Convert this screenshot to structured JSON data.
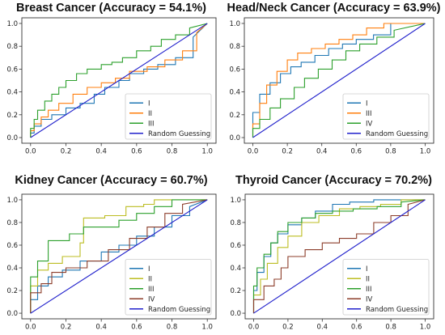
{
  "chart_data": [
    {
      "type": "line",
      "title": "Breast Cancer (Accuracy = 54.1%)",
      "xlim": [
        0,
        1
      ],
      "ylim": [
        0,
        1
      ],
      "xticks": [
        "0.0",
        "0.2",
        "0.4",
        "0.6",
        "0.8",
        "1.0"
      ],
      "yticks": [
        "0.0",
        "0.2",
        "0.4",
        "0.6",
        "0.8",
        "1.0"
      ],
      "grid": false,
      "legend_placement": "lower-right",
      "series": [
        {
          "name": "I",
          "color": "#1f77b4",
          "x": [
            0,
            0,
            0.02,
            0.02,
            0.06,
            0.06,
            0.12,
            0.12,
            0.2,
            0.2,
            0.28,
            0.28,
            0.36,
            0.36,
            0.42,
            0.42,
            0.5,
            0.5,
            0.56,
            0.56,
            0.64,
            0.64,
            0.72,
            0.72,
            0.82,
            0.82,
            0.92,
            0.92,
            1.0
          ],
          "y": [
            0,
            0.04,
            0.04,
            0.1,
            0.1,
            0.16,
            0.16,
            0.2,
            0.2,
            0.26,
            0.26,
            0.3,
            0.3,
            0.38,
            0.38,
            0.44,
            0.44,
            0.5,
            0.5,
            0.56,
            0.56,
            0.6,
            0.6,
            0.64,
            0.64,
            0.7,
            0.7,
            0.88,
            1.0
          ]
        },
        {
          "name": "II",
          "color": "#ff7f0e",
          "x": [
            0,
            0,
            0.02,
            0.02,
            0.06,
            0.06,
            0.1,
            0.1,
            0.16,
            0.16,
            0.24,
            0.24,
            0.32,
            0.32,
            0.4,
            0.4,
            0.48,
            0.48,
            0.56,
            0.56,
            0.66,
            0.66,
            0.76,
            0.76,
            0.86,
            0.86,
            0.94,
            0.94,
            1.0
          ],
          "y": [
            0,
            0.06,
            0.06,
            0.12,
            0.12,
            0.18,
            0.18,
            0.24,
            0.24,
            0.3,
            0.3,
            0.38,
            0.38,
            0.44,
            0.44,
            0.48,
            0.48,
            0.52,
            0.52,
            0.58,
            0.58,
            0.62,
            0.62,
            0.68,
            0.68,
            0.76,
            0.76,
            0.92,
            1.0
          ]
        },
        {
          "name": "III",
          "color": "#2ca02c",
          "x": [
            0,
            0,
            0.02,
            0.02,
            0.04,
            0.04,
            0.08,
            0.08,
            0.12,
            0.12,
            0.16,
            0.16,
            0.2,
            0.2,
            0.26,
            0.26,
            0.32,
            0.32,
            0.4,
            0.4,
            0.46,
            0.46,
            0.52,
            0.52,
            0.6,
            0.6,
            0.68,
            0.68,
            0.74,
            0.74,
            0.82,
            0.82,
            0.9,
            0.9,
            1.0
          ],
          "y": [
            0,
            0.08,
            0.08,
            0.16,
            0.16,
            0.24,
            0.24,
            0.32,
            0.32,
            0.38,
            0.38,
            0.44,
            0.44,
            0.5,
            0.5,
            0.56,
            0.56,
            0.6,
            0.6,
            0.64,
            0.64,
            0.66,
            0.66,
            0.7,
            0.7,
            0.76,
            0.76,
            0.8,
            0.8,
            0.86,
            0.86,
            0.9,
            0.9,
            0.96,
            1.0
          ]
        },
        {
          "name": "Random Guessing",
          "color": "#2222cc",
          "x": [
            0,
            1
          ],
          "y": [
            0,
            1
          ]
        }
      ]
    },
    {
      "type": "line",
      "title": "Head/Neck Cancer (Accuracy = 63.9%)",
      "xlim": [
        0,
        1
      ],
      "ylim": [
        0,
        1
      ],
      "xticks": [
        "0.0",
        "0.2",
        "0.4",
        "0.6",
        "0.8",
        "1.0"
      ],
      "yticks": [
        "0.0",
        "0.2",
        "0.4",
        "0.6",
        "0.8",
        "1.0"
      ],
      "grid": false,
      "legend_placement": "lower-right",
      "series": [
        {
          "name": "I",
          "color": "#1f77b4",
          "x": [
            0,
            0,
            0.04,
            0.04,
            0.1,
            0.1,
            0.16,
            0.16,
            0.22,
            0.22,
            0.28,
            0.28,
            0.36,
            0.36,
            0.44,
            0.44,
            0.52,
            0.52,
            0.6,
            0.6,
            0.7,
            0.7,
            0.8,
            0.8,
            1.0
          ],
          "y": [
            0,
            0.22,
            0.22,
            0.38,
            0.38,
            0.48,
            0.48,
            0.56,
            0.56,
            0.62,
            0.62,
            0.66,
            0.66,
            0.72,
            0.72,
            0.78,
            0.78,
            0.82,
            0.82,
            0.86,
            0.86,
            0.9,
            0.9,
            1.0,
            1.0
          ]
        },
        {
          "name": "III",
          "color": "#ff7f0e",
          "x": [
            0,
            0,
            0.04,
            0.04,
            0.08,
            0.08,
            0.14,
            0.14,
            0.2,
            0.2,
            0.26,
            0.26,
            0.34,
            0.34,
            0.42,
            0.42,
            0.5,
            0.5,
            0.58,
            0.58,
            0.66,
            0.66,
            0.76,
            0.76,
            1.0
          ],
          "y": [
            0,
            0.12,
            0.12,
            0.3,
            0.3,
            0.46,
            0.46,
            0.58,
            0.58,
            0.68,
            0.68,
            0.74,
            0.74,
            0.78,
            0.78,
            0.82,
            0.82,
            0.86,
            0.86,
            0.9,
            0.9,
            0.96,
            0.96,
            1.0,
            1.0
          ]
        },
        {
          "name": "IV",
          "color": "#2ca02c",
          "x": [
            0,
            0,
            0.04,
            0.04,
            0.1,
            0.1,
            0.16,
            0.16,
            0.24,
            0.24,
            0.3,
            0.3,
            0.38,
            0.38,
            0.46,
            0.46,
            0.54,
            0.54,
            0.62,
            0.62,
            0.72,
            0.72,
            0.82,
            0.82,
            1.0
          ],
          "y": [
            0,
            0.08,
            0.08,
            0.16,
            0.16,
            0.26,
            0.26,
            0.34,
            0.34,
            0.44,
            0.44,
            0.52,
            0.52,
            0.6,
            0.6,
            0.68,
            0.68,
            0.76,
            0.76,
            0.82,
            0.82,
            0.88,
            0.88,
            0.94,
            1.0
          ]
        },
        {
          "name": "Random Guessing",
          "color": "#2222cc",
          "x": [
            0,
            1
          ],
          "y": [
            0,
            1
          ]
        }
      ]
    },
    {
      "type": "line",
      "title": "Kidney Cancer (Accuracy = 60.7%)",
      "xlim": [
        0,
        1
      ],
      "ylim": [
        0,
        1
      ],
      "xticks": [
        "0.0",
        "0.2",
        "0.4",
        "0.6",
        "0.8",
        "1.0"
      ],
      "yticks": [
        "0.0",
        "0.2",
        "0.4",
        "0.6",
        "0.8",
        "1.0"
      ],
      "grid": false,
      "legend_placement": "lower-right",
      "series": [
        {
          "name": "I",
          "color": "#1f77b4",
          "x": [
            0,
            0,
            0.04,
            0.04,
            0.1,
            0.1,
            0.18,
            0.18,
            0.28,
            0.28,
            0.4,
            0.4,
            0.5,
            0.5,
            0.6,
            0.6,
            0.7,
            0.7,
            0.8,
            0.8,
            0.9,
            0.9,
            1.0
          ],
          "y": [
            0,
            0.12,
            0.12,
            0.24,
            0.24,
            0.32,
            0.32,
            0.38,
            0.38,
            0.46,
            0.46,
            0.54,
            0.54,
            0.6,
            0.6,
            0.68,
            0.68,
            0.76,
            0.76,
            0.86,
            0.86,
            0.94,
            1.0
          ]
        },
        {
          "name": "II",
          "color": "#bcbd22",
          "x": [
            0,
            0,
            0.04,
            0.04,
            0.1,
            0.1,
            0.18,
            0.18,
            0.28,
            0.28,
            0.3,
            0.3,
            0.42,
            0.42,
            0.54,
            0.54,
            0.64,
            0.64,
            0.7,
            0.7,
            1.0
          ],
          "y": [
            0,
            0.24,
            0.24,
            0.38,
            0.38,
            0.44,
            0.44,
            0.5,
            0.5,
            0.62,
            0.62,
            0.84,
            0.84,
            0.86,
            0.86,
            0.94,
            0.94,
            0.96,
            0.96,
            1.0,
            1.0
          ]
        },
        {
          "name": "III",
          "color": "#2ca02c",
          "x": [
            0,
            0,
            0.04,
            0.04,
            0.1,
            0.1,
            0.14,
            0.14,
            0.22,
            0.22,
            0.3,
            0.3,
            0.4,
            0.4,
            0.5,
            0.5,
            0.6,
            0.6,
            0.7,
            0.7,
            0.8,
            0.8,
            1.0
          ],
          "y": [
            0,
            0.32,
            0.32,
            0.46,
            0.46,
            0.64,
            0.64,
            0.64,
            0.64,
            0.7,
            0.7,
            0.76,
            0.76,
            0.76,
            0.76,
            0.82,
            0.82,
            0.88,
            0.88,
            0.94,
            0.94,
            1.0,
            1.0
          ]
        },
        {
          "name": "IV",
          "color": "#8c3d2a",
          "x": [
            0,
            0,
            0.06,
            0.06,
            0.12,
            0.12,
            0.2,
            0.2,
            0.32,
            0.32,
            0.44,
            0.44,
            0.56,
            0.56,
            0.66,
            0.66,
            0.76,
            0.76,
            0.86,
            0.86,
            1.0
          ],
          "y": [
            0,
            0.18,
            0.18,
            0.26,
            0.26,
            0.36,
            0.36,
            0.4,
            0.4,
            0.46,
            0.46,
            0.56,
            0.56,
            0.66,
            0.66,
            0.76,
            0.76,
            0.88,
            0.88,
            0.96,
            1.0
          ]
        },
        {
          "name": "Random Guessing",
          "color": "#2222cc",
          "x": [
            0,
            1
          ],
          "y": [
            0,
            1
          ]
        }
      ]
    },
    {
      "type": "line",
      "title": "Thyroid Cancer (Accuracy = 70.2%)",
      "xlim": [
        0,
        1
      ],
      "ylim": [
        0,
        1
      ],
      "xticks": [
        "0.0",
        "0.2",
        "0.4",
        "0.6",
        "0.8",
        "1.0"
      ],
      "yticks": [
        "0.0",
        "0.2",
        "0.4",
        "0.6",
        "0.8",
        "1.0"
      ],
      "grid": false,
      "legend_placement": "lower-right",
      "series": [
        {
          "name": "I",
          "color": "#1f77b4",
          "x": [
            0,
            0,
            0.02,
            0.02,
            0.06,
            0.06,
            0.1,
            0.1,
            0.14,
            0.14,
            0.2,
            0.2,
            0.28,
            0.28,
            0.36,
            0.36,
            0.46,
            0.46,
            0.56,
            0.56,
            0.7,
            0.7,
            0.84,
            0.84,
            1.0
          ],
          "y": [
            0,
            0.2,
            0.2,
            0.36,
            0.36,
            0.5,
            0.5,
            0.62,
            0.62,
            0.7,
            0.7,
            0.78,
            0.78,
            0.84,
            0.84,
            0.9,
            0.9,
            0.96,
            0.96,
            0.98,
            0.98,
            1.0,
            1.0,
            1.0,
            1.0
          ]
        },
        {
          "name": "II",
          "color": "#bcbd22",
          "x": [
            0,
            0,
            0.04,
            0.04,
            0.08,
            0.08,
            0.14,
            0.14,
            0.2,
            0.2,
            0.28,
            0.28,
            0.38,
            0.38,
            0.5,
            0.5,
            0.62,
            0.62,
            0.74,
            0.74,
            0.86,
            0.86,
            1.0
          ],
          "y": [
            0,
            0.16,
            0.16,
            0.3,
            0.3,
            0.44,
            0.44,
            0.58,
            0.58,
            0.68,
            0.68,
            0.8,
            0.8,
            0.86,
            0.86,
            0.92,
            0.92,
            0.94,
            0.94,
            0.96,
            0.96,
            1.0,
            1.0
          ]
        },
        {
          "name": "III",
          "color": "#2ca02c",
          "x": [
            0,
            0,
            0.02,
            0.02,
            0.06,
            0.06,
            0.1,
            0.1,
            0.14,
            0.14,
            0.2,
            0.2,
            0.28,
            0.28,
            0.36,
            0.36,
            0.46,
            0.46,
            0.58,
            0.58,
            0.72,
            0.72,
            0.86,
            0.86,
            1.0
          ],
          "y": [
            0,
            0.24,
            0.24,
            0.4,
            0.4,
            0.52,
            0.52,
            0.62,
            0.62,
            0.72,
            0.72,
            0.8,
            0.8,
            0.84,
            0.84,
            0.88,
            0.88,
            0.9,
            0.9,
            0.92,
            0.92,
            0.94,
            0.94,
            0.98,
            1.0
          ]
        },
        {
          "name": "IV",
          "color": "#8c3d2a",
          "x": [
            0,
            0,
            0.06,
            0.06,
            0.12,
            0.12,
            0.16,
            0.16,
            0.2,
            0.2,
            0.3,
            0.3,
            0.4,
            0.4,
            0.5,
            0.5,
            0.6,
            0.6,
            0.7,
            0.7,
            0.8,
            0.8,
            0.9,
            0.9,
            1.0
          ],
          "y": [
            0,
            0.12,
            0.12,
            0.24,
            0.24,
            0.3,
            0.3,
            0.4,
            0.4,
            0.5,
            0.5,
            0.56,
            0.56,
            0.62,
            0.62,
            0.66,
            0.66,
            0.7,
            0.7,
            0.8,
            0.8,
            0.86,
            0.86,
            0.96,
            1.0
          ]
        },
        {
          "name": "Random Guessing",
          "color": "#2222cc",
          "x": [
            0,
            1
          ],
          "y": [
            0,
            1
          ]
        }
      ]
    }
  ]
}
